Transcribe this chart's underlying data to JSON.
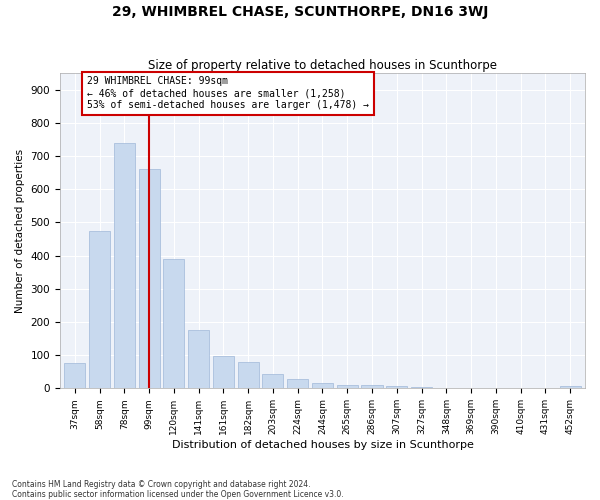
{
  "title": "29, WHIMBREL CHASE, SCUNTHORPE, DN16 3WJ",
  "subtitle": "Size of property relative to detached houses in Scunthorpe",
  "xlabel": "Distribution of detached houses by size in Scunthorpe",
  "ylabel": "Number of detached properties",
  "categories": [
    "37sqm",
    "58sqm",
    "78sqm",
    "99sqm",
    "120sqm",
    "141sqm",
    "161sqm",
    "182sqm",
    "203sqm",
    "224sqm",
    "244sqm",
    "265sqm",
    "286sqm",
    "307sqm",
    "327sqm",
    "348sqm",
    "369sqm",
    "390sqm",
    "410sqm",
    "431sqm",
    "452sqm"
  ],
  "values": [
    75,
    475,
    740,
    660,
    390,
    175,
    97,
    78,
    43,
    27,
    15,
    10,
    9,
    6,
    5,
    2,
    0,
    0,
    0,
    0,
    7
  ],
  "bar_color": "#c8d9ee",
  "bar_edge_color": "#a0b8d8",
  "vline_x_index": 3,
  "vline_color": "#cc0000",
  "annotation_text": "29 WHIMBREL CHASE: 99sqm\n← 46% of detached houses are smaller (1,258)\n53% of semi-detached houses are larger (1,478) →",
  "annotation_box_color": "#cc0000",
  "background_color": "#eef2f9",
  "fig_background_color": "#ffffff",
  "grid_color": "#ffffff",
  "ylim": [
    0,
    950
  ],
  "yticks": [
    0,
    100,
    200,
    300,
    400,
    500,
    600,
    700,
    800,
    900
  ],
  "footer_line1": "Contains HM Land Registry data © Crown copyright and database right 2024.",
  "footer_line2": "Contains public sector information licensed under the Open Government Licence v3.0."
}
